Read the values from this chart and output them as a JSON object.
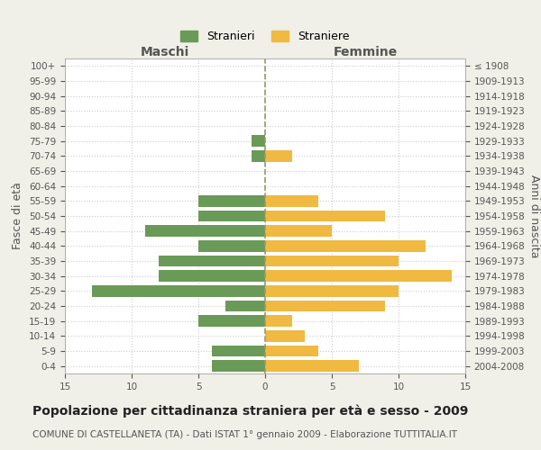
{
  "age_groups": [
    "0-4",
    "5-9",
    "10-14",
    "15-19",
    "20-24",
    "25-29",
    "30-34",
    "35-39",
    "40-44",
    "45-49",
    "50-54",
    "55-59",
    "60-64",
    "65-69",
    "70-74",
    "75-79",
    "80-84",
    "85-89",
    "90-94",
    "95-99",
    "100+"
  ],
  "birth_years": [
    "2004-2008",
    "1999-2003",
    "1994-1998",
    "1989-1993",
    "1984-1988",
    "1979-1983",
    "1974-1978",
    "1969-1973",
    "1964-1968",
    "1959-1963",
    "1954-1958",
    "1949-1953",
    "1944-1948",
    "1939-1943",
    "1934-1938",
    "1929-1933",
    "1924-1928",
    "1919-1923",
    "1914-1918",
    "1909-1913",
    "≤ 1908"
  ],
  "males": [
    4,
    4,
    0,
    5,
    3,
    13,
    8,
    8,
    5,
    9,
    5,
    5,
    0,
    0,
    1,
    1,
    0,
    0,
    0,
    0,
    0
  ],
  "females": [
    7,
    4,
    3,
    2,
    9,
    10,
    14,
    10,
    12,
    5,
    9,
    4,
    0,
    0,
    2,
    0,
    0,
    0,
    0,
    0,
    0
  ],
  "male_color": "#6a9a57",
  "female_color": "#f0b942",
  "background_color": "#f0efe8",
  "bar_background": "#ffffff",
  "grid_color": "#cccccc",
  "zero_line_color": "#999966",
  "title": "Popolazione per cittadinanza straniera per età e sesso - 2009",
  "subtitle": "COMUNE DI CASTELLANETA (TA) - Dati ISTAT 1° gennaio 2009 - Elaborazione TUTTITALIA.IT",
  "xlabel_left": "Maschi",
  "xlabel_right": "Femmine",
  "ylabel_left": "Fasce di età",
  "ylabel_right": "Anni di nascita",
  "legend_males": "Stranieri",
  "legend_females": "Straniere",
  "xlim": 15,
  "title_fontsize": 10,
  "subtitle_fontsize": 7.5,
  "label_fontsize": 9,
  "tick_fontsize": 7.5
}
